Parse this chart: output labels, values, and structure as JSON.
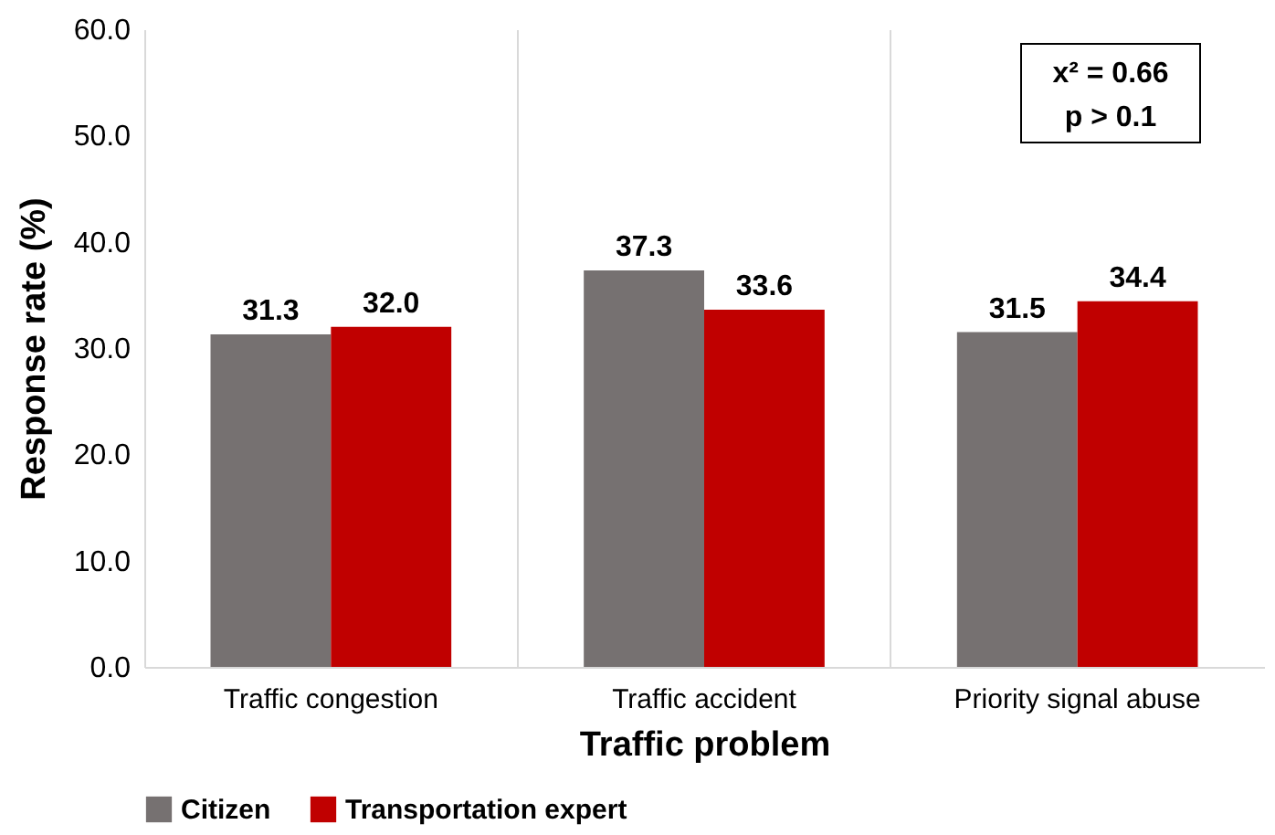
{
  "chart_data": {
    "type": "bar",
    "xlabel": "Traffic problem",
    "ylabel": "Response rate (%)",
    "categories": [
      "Traffic congestion",
      "Traffic accident",
      "Priority signal abuse"
    ],
    "series": [
      {
        "name": "Citizen",
        "color": "#767171",
        "values": [
          31.3,
          37.3,
          31.5
        ],
        "value_labels": [
          "31.3",
          "37.3",
          "31.5"
        ]
      },
      {
        "name": "Transportation expert",
        "color": "#c00000",
        "values": [
          32.0,
          33.6,
          34.4
        ],
        "value_labels": [
          "32.0",
          "33.6",
          "34.4"
        ]
      }
    ],
    "ylim": [
      0,
      60
    ],
    "yticks": [
      {
        "value": 0,
        "label": "0.0"
      },
      {
        "value": 10,
        "label": "10.0"
      },
      {
        "value": 20,
        "label": "20.0"
      },
      {
        "value": 30,
        "label": "30.0"
      },
      {
        "value": 40,
        "label": "40.0"
      },
      {
        "value": 50,
        "label": "50.0"
      },
      {
        "value": 60,
        "label": "60.0"
      }
    ],
    "grid": "x",
    "legend": "bottom",
    "annotations": [
      "x² = 0.66",
      "p > 0.1"
    ]
  }
}
